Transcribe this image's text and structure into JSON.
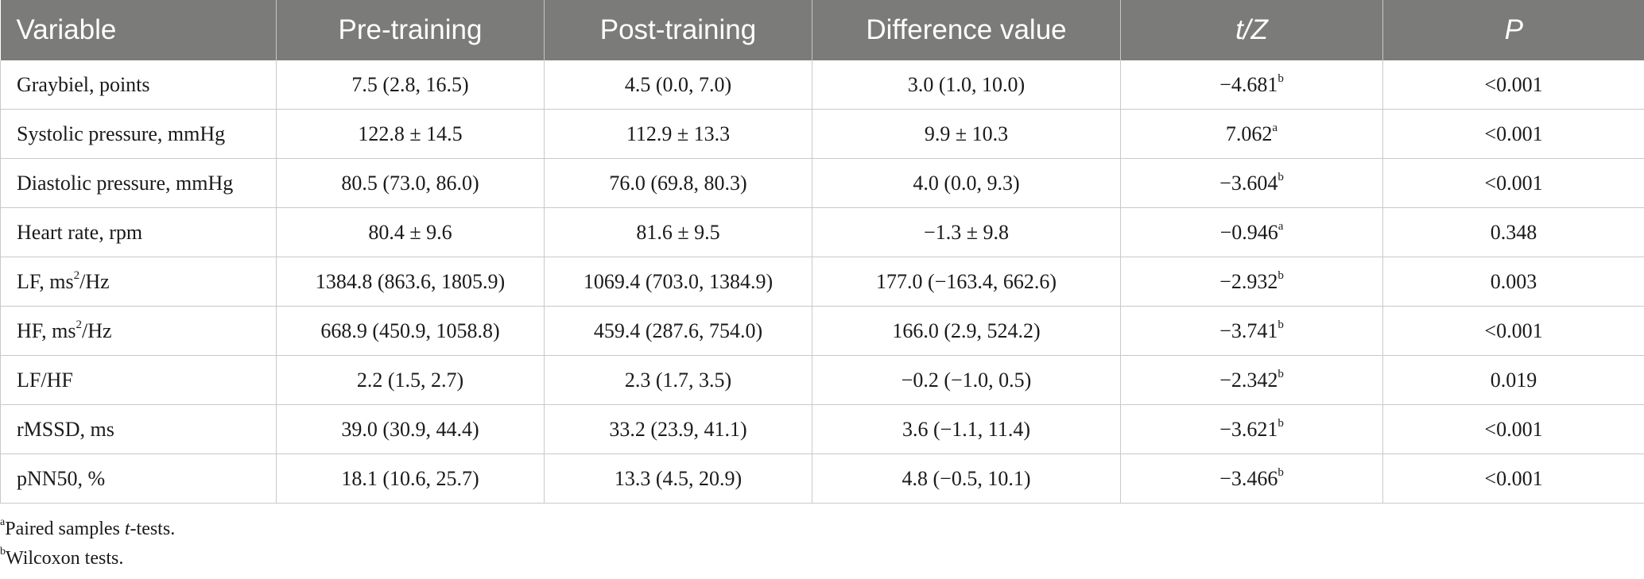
{
  "columns": [
    "Variable",
    "Pre-training",
    "Post-training",
    "Difference value",
    "t/Z",
    "P"
  ],
  "rows": [
    {
      "variable": "Graybiel, points",
      "unit_sup": "",
      "unit_rest": "",
      "pre": "7.5 (2.8, 16.5)",
      "post": "4.5 (0.0, 7.0)",
      "diff": "3.0 (1.0, 10.0)",
      "stat": "−4.681",
      "stat_sup": "b",
      "p": "<0.001"
    },
    {
      "variable": "Systolic pressure, mmHg",
      "unit_sup": "",
      "unit_rest": "",
      "pre": "122.8 ± 14.5",
      "post": "112.9 ± 13.3",
      "diff": "9.9 ± 10.3",
      "stat": "7.062",
      "stat_sup": "a",
      "p": "<0.001"
    },
    {
      "variable": "Diastolic pressure, mmHg",
      "unit_sup": "",
      "unit_rest": "",
      "pre": "80.5 (73.0, 86.0)",
      "post": "76.0 (69.8, 80.3)",
      "diff": "4.0 (0.0, 9.3)",
      "stat": "−3.604",
      "stat_sup": "b",
      "p": "<0.001"
    },
    {
      "variable": "Heart rate, rpm",
      "unit_sup": "",
      "unit_rest": "",
      "pre": "80.4 ± 9.6",
      "post": "81.6 ± 9.5",
      "diff": "−1.3 ± 9.8",
      "stat": "−0.946",
      "stat_sup": "a",
      "p": "0.348"
    },
    {
      "variable": "LF, ms",
      "unit_sup": "2",
      "unit_rest": "/Hz",
      "pre": "1384.8 (863.6, 1805.9)",
      "post": "1069.4 (703.0, 1384.9)",
      "diff": "177.0 (−163.4, 662.6)",
      "stat": "−2.932",
      "stat_sup": "b",
      "p": "0.003"
    },
    {
      "variable": "HF, ms",
      "unit_sup": "2",
      "unit_rest": "/Hz",
      "pre": "668.9 (450.9, 1058.8)",
      "post": "459.4 (287.6, 754.0)",
      "diff": "166.0 (2.9, 524.2)",
      "stat": "−3.741",
      "stat_sup": "b",
      "p": "<0.001"
    },
    {
      "variable": "LF/HF",
      "unit_sup": "",
      "unit_rest": "",
      "pre": "2.2 (1.5, 2.7)",
      "post": "2.3 (1.7, 3.5)",
      "diff": "−0.2 (−1.0, 0.5)",
      "stat": "−2.342",
      "stat_sup": "b",
      "p": "0.019"
    },
    {
      "variable": "rMSSD, ms",
      "unit_sup": "",
      "unit_rest": "",
      "pre": "39.0 (30.9, 44.4)",
      "post": "33.2 (23.9, 41.1)",
      "diff": "3.6 (−1.1, 11.4)",
      "stat": "−3.621",
      "stat_sup": "b",
      "p": "<0.001"
    },
    {
      "variable": "pNN50, %",
      "unit_sup": "",
      "unit_rest": "",
      "pre": "18.1 (10.6, 25.7)",
      "post": "13.3 (4.5, 20.9)",
      "diff": "4.8 (−0.5, 10.1)",
      "stat": "−3.466",
      "stat_sup": "b",
      "p": "<0.001"
    }
  ],
  "footnotes": [
    {
      "mark": "a",
      "pre": "Paired samples ",
      "ital": "t",
      "post": "-tests."
    },
    {
      "mark": "b",
      "pre": "Wilcoxon tests.",
      "ital": "",
      "post": ""
    }
  ],
  "colors": {
    "header_bg": "#7b7b7a",
    "header_text": "#ffffff",
    "grid": "#c9c9c9"
  }
}
